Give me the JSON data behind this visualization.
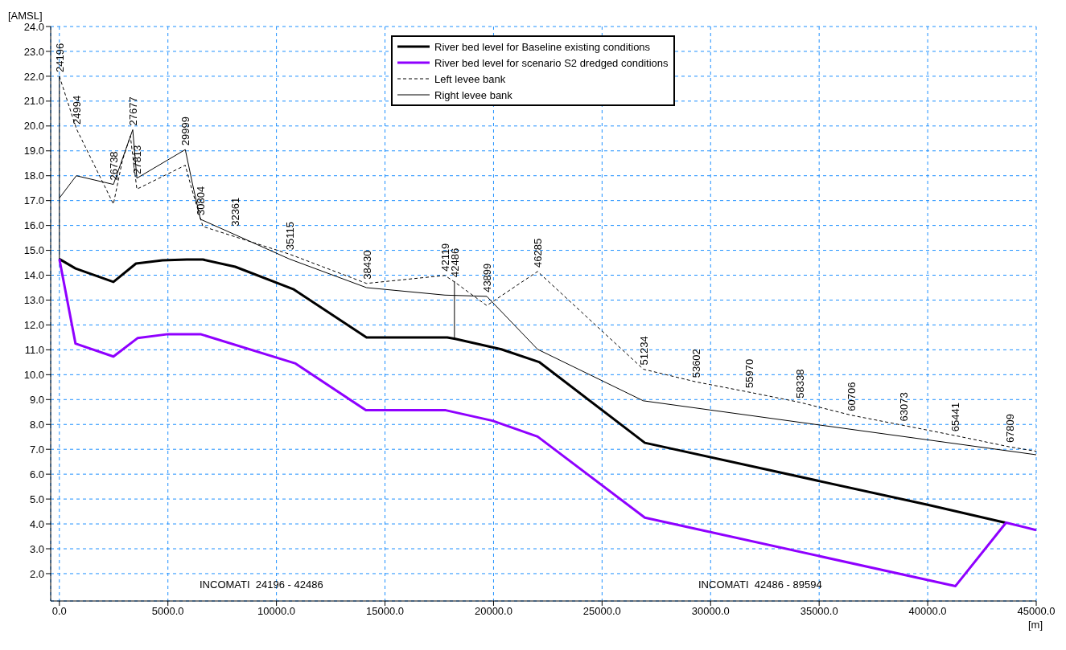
{
  "chart_data": {
    "type": "line",
    "xlabel": "[m]",
    "ylabel": "[AMSL]",
    "legend": "top",
    "grid": true,
    "xlim": [
      -400,
      45000
    ],
    "ylim": [
      0.9,
      24
    ],
    "xticks": [
      {
        "value": 0,
        "label": "0.0"
      },
      {
        "value": 5000,
        "label": "5000.0"
      },
      {
        "value": 10000,
        "label": "10000.0"
      },
      {
        "value": 15000,
        "label": "15000.0"
      },
      {
        "value": 20000,
        "label": "20000.0"
      },
      {
        "value": 25000,
        "label": "25000.0"
      },
      {
        "value": 30000,
        "label": "30000.0"
      },
      {
        "value": 35000,
        "label": "35000.0"
      },
      {
        "value": 40000,
        "label": "40000.0"
      },
      {
        "value": 45000,
        "label": "45000.0"
      }
    ],
    "yticks": [
      {
        "value": 2,
        "label": "2.0"
      },
      {
        "value": 3,
        "label": "3.0"
      },
      {
        "value": 4,
        "label": "4.0"
      },
      {
        "value": 5,
        "label": "5.0"
      },
      {
        "value": 6,
        "label": "6.0"
      },
      {
        "value": 7,
        "label": "7.0"
      },
      {
        "value": 8,
        "label": "8.0"
      },
      {
        "value": 9,
        "label": "9.0"
      },
      {
        "value": 10,
        "label": "10.0"
      },
      {
        "value": 11,
        "label": "11.0"
      },
      {
        "value": 12,
        "label": "12.0"
      },
      {
        "value": 13,
        "label": "13.0"
      },
      {
        "value": 14,
        "label": "14.0"
      },
      {
        "value": 15,
        "label": "15.0"
      },
      {
        "value": 16,
        "label": "16.0"
      },
      {
        "value": 17,
        "label": "17.0"
      },
      {
        "value": 18,
        "label": "18.0"
      },
      {
        "value": 19,
        "label": "19.0"
      },
      {
        "value": 20,
        "label": "20.0"
      },
      {
        "value": 21,
        "label": "21.0"
      },
      {
        "value": 22,
        "label": "22.0"
      },
      {
        "value": 23,
        "label": "23.0"
      },
      {
        "value": 24,
        "label": "24.0"
      }
    ],
    "series": [
      {
        "name": "River bed level for Baseline existing conditions",
        "color": "#000000",
        "line_style": "solid",
        "x": [
          0,
          743,
          2490,
          3530,
          4750,
          5870,
          6610,
          8100,
          10770,
          14150,
          17870,
          18240,
          20360,
          22100,
          26970,
          40000,
          43610
        ],
        "values": [
          14.65,
          14.27,
          13.73,
          14.47,
          14.6,
          14.63,
          14.63,
          14.34,
          13.44,
          11.5,
          11.5,
          11.44,
          11.02,
          10.51,
          7.26,
          4.77,
          4.04
        ]
      },
      {
        "name": "River bed level for scenario S2 dredged conditions",
        "color": "#8f00ff",
        "line_style": "solid",
        "x": [
          0,
          743,
          2490,
          3600,
          5010,
          6500,
          10880,
          14120,
          17800,
          19950,
          22030,
          26970,
          41280,
          43610,
          45000
        ],
        "values": [
          14.65,
          11.25,
          10.73,
          11.47,
          11.63,
          11.63,
          10.45,
          8.57,
          8.57,
          8.15,
          7.51,
          4.25,
          1.5,
          4.05,
          3.75
        ]
      },
      {
        "name": "Left levee bank",
        "color": "#000000",
        "line_style": "dashed",
        "x": [
          0,
          780,
          2490,
          2900,
          3270,
          3570,
          5800,
          6090,
          6610,
          10590,
          14150,
          17760,
          18200,
          19690,
          22030,
          26900,
          29330,
          31760,
          34100,
          36480,
          38890,
          41270,
          43760,
          45000
        ],
        "values": [
          22.0,
          19.9,
          16.86,
          18.6,
          19.6,
          17.46,
          18.42,
          17.5,
          15.96,
          14.85,
          13.67,
          13.99,
          13.73,
          12.78,
          14.15,
          10.22,
          9.71,
          9.3,
          8.89,
          8.37,
          7.96,
          7.55,
          7.1,
          6.92
        ]
      },
      {
        "name": "Right levee bank",
        "color": "#000000",
        "line_style": "solid",
        "x": [
          0,
          780,
          2490,
          3380,
          3570,
          5800,
          6150,
          6500,
          10600,
          14150,
          17760,
          19690,
          22030,
          26900,
          45000
        ],
        "values": [
          17.1,
          18.0,
          17.65,
          19.85,
          17.9,
          19.05,
          17.6,
          16.25,
          14.65,
          13.5,
          13.2,
          13.15,
          11.02,
          8.95,
          6.78
        ]
      },
      {
        "color": "#000000",
        "line_style": "solid",
        "x": [
          0,
          0
        ],
        "values": [
          14.65,
          22.0
        ]
      },
      {
        "color": "#000000",
        "line_style": "solid",
        "x": [
          18200,
          18200
        ],
        "values": [
          13.76,
          11.45
        ]
      }
    ],
    "annotations": [
      {
        "text": "24196",
        "x": 0,
        "y": 22.0
      },
      {
        "text": "24994",
        "x": 780,
        "y": 19.9
      },
      {
        "text": "26738",
        "x": 2490,
        "y": 17.65
      },
      {
        "text": "27677",
        "x": 3380,
        "y": 19.85
      },
      {
        "text": "27813",
        "x": 3570,
        "y": 17.9
      },
      {
        "text": "29999",
        "x": 5800,
        "y": 19.05
      },
      {
        "text": "30804",
        "x": 6500,
        "y": 16.25
      },
      {
        "text": "32361",
        "x": 8100,
        "y": 15.8
      },
      {
        "text": "35115",
        "x": 10590,
        "y": 14.85
      },
      {
        "text": "38430",
        "x": 14150,
        "y": 13.67
      },
      {
        "text": "42119",
        "x": 17760,
        "y": 13.99
      },
      {
        "text": "42486",
        "x": 18200,
        "y": 13.76
      },
      {
        "text": "43899",
        "x": 19690,
        "y": 13.15
      },
      {
        "text": "46285",
        "x": 22030,
        "y": 14.15
      },
      {
        "text": "51234",
        "x": 26900,
        "y": 10.22
      },
      {
        "text": "53602",
        "x": 29330,
        "y": 9.71
      },
      {
        "text": "55970",
        "x": 31760,
        "y": 9.3
      },
      {
        "text": "58338",
        "x": 34100,
        "y": 8.89
      },
      {
        "text": "60706",
        "x": 36480,
        "y": 8.37
      },
      {
        "text": "63073",
        "x": 38890,
        "y": 7.96
      },
      {
        "text": "65441",
        "x": 41270,
        "y": 7.55
      },
      {
        "text": "67809",
        "x": 43760,
        "y": 7.1
      },
      "INCOMATI  24196 - 42486",
      "INCOMATI  42486 - 89594"
    ]
  }
}
